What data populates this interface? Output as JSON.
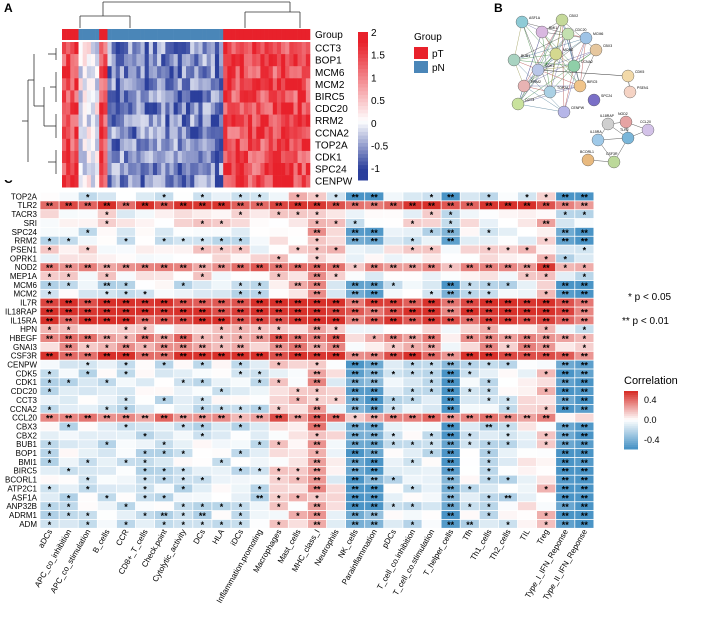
{
  "panel_a": {
    "letter": "A",
    "genes": [
      "CCT3",
      "BOP1",
      "MCM6",
      "MCM2",
      "BIRC5",
      "CDC20",
      "RRM2",
      "CCNA2",
      "TOP2A",
      "CDK1",
      "SPC24",
      "CENPW"
    ],
    "annotation_label": "Group",
    "colorbar_ticks": [
      "2",
      "1.5",
      "1",
      "0.5",
      "0",
      "-0.5",
      "-1"
    ],
    "legend": {
      "title": "Group",
      "items": [
        {
          "label": "pT",
          "color": "#e8212b"
        },
        {
          "label": "pN",
          "color": "#4a86b8"
        }
      ]
    },
    "colors": {
      "high": "#e8212b",
      "mid": "#ffffff",
      "low": "#2b3f9c"
    }
  },
  "panel_b": {
    "letter": "B",
    "cluster1_nodes": [
      "ASF1A",
      "CBX2",
      "BMI1",
      "MCM6",
      "CDC20",
      "CBX3",
      "BUB1",
      "MCM2",
      "CDK1",
      "CCNA2",
      "RRM2",
      "TOP2A",
      "BIRC5",
      "CCT3",
      "CENPW",
      "SPC24",
      "CDK5",
      "PSEN1"
    ],
    "cluster2_nodes": [
      "IL18RAP",
      "IL15RA",
      "TLR2",
      "NOD2",
      "CCL20",
      "BCORL1",
      "CSF3R"
    ]
  },
  "panel_c": {
    "letter": "C",
    "rows": [
      "TOP2A",
      "TLR2",
      "TACR3",
      "SRI",
      "SPC24",
      "RRM2",
      "PSEN1",
      "OPRK1",
      "NOD2",
      "MEP1A",
      "MCM6",
      "MCM2",
      "IL7R",
      "IL18RAP",
      "IL15RA",
      "HPN",
      "HBEGF",
      "GNAI3",
      "CSF3R",
      "CENPW",
      "CDK5",
      "CDK1",
      "CDC20",
      "CCT3",
      "CCNA2",
      "CCL20",
      "CBX3",
      "CBX2",
      "BUB1",
      "BOP1",
      "BMI1",
      "BIRC5",
      "BCORL1",
      "ATP2C1",
      "ASF1A",
      "ANP32B",
      "ADRM1",
      "ADM"
    ],
    "cols": [
      "aDCs",
      "APC_co_inhibition",
      "APC_co_stimulation",
      "B_cells",
      "CCR",
      "CD8+_T_cells",
      "Check.point",
      "Cytolytic_activity",
      "DCs",
      "HLA",
      "iDCs",
      "Inflammation.promoting",
      "Macrophages",
      "Mast_cells",
      "MHC_class_I",
      "Neutrophils",
      "NK_cells",
      "Parainflammation",
      "pDCs",
      "T_cell_co.inhibition",
      "T_cell_co.stimulation",
      "T_helper_cells",
      "Tfh",
      "Th1_cells",
      "Th2_cells",
      "TIL",
      "Treg",
      "Type_I_IFN_Reponse",
      "Type_II_IFN_Reponse"
    ],
    "sig_legend": [
      "* p < 0.05",
      "** p < 0.01"
    ],
    "colorbar": {
      "title": "Correlation",
      "ticks": [
        "0.4",
        "0.0",
        "-0.4"
      ]
    },
    "colors": {
      "pos": "#d7302a",
      "neg": "#4a94c6",
      "mid": "#ffffff"
    }
  }
}
